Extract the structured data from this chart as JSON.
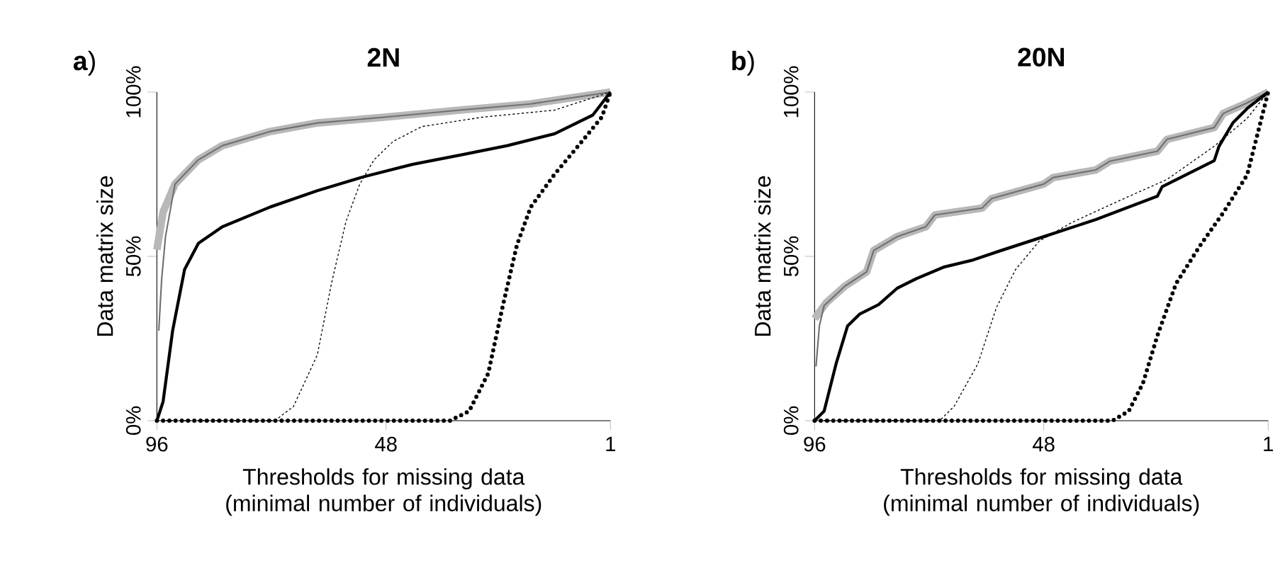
{
  "chart_data": [
    {
      "type": "line",
      "title": "2N",
      "annotations": [
        "**a**)"
      ],
      "xlabel": "Thresholds for missing data (minimal number of individuals)",
      "ylabel": "Data matrix size",
      "xlim": [
        96,
        1
      ],
      "xticks": [
        96,
        48,
        1
      ],
      "ylim": [
        0,
        100
      ],
      "yticks": [
        {
          "value": 0,
          "label": "0%"
        },
        {
          "value": 50,
          "label": "50%"
        },
        {
          "value": 100,
          "label": "100%"
        }
      ],
      "grid": false,
      "marker": "none",
      "series": [
        {
          "color": "#b8b8b8",
          "line_style": "solid",
          "x": [
            96,
            94.7,
            92.2,
            87.3,
            82.3,
            72.3,
            62.4,
            48,
            32.6,
            17.7,
            1
          ],
          "values": [
            52,
            63.5,
            72,
            79.4,
            83.7,
            88,
            90.6,
            92.4,
            94.5,
            96.4,
            100
          ]
        },
        {
          "color": "#707070",
          "line_style": "solid",
          "x": [
            95.6,
            95,
            94.2,
            92.2,
            87.3,
            82.3,
            72.3,
            62.4,
            48,
            32.6,
            17.7,
            1
          ],
          "values": [
            27.4,
            43,
            56,
            72,
            79.4,
            83.7,
            88,
            90.6,
            92.4,
            94.5,
            96.4,
            100
          ]
        },
        {
          "color": "#000000",
          "line_style": "solid",
          "x": [
            96,
            94.7,
            92.7,
            90.2,
            87.3,
            82.3,
            72.3,
            62.4,
            52.5,
            42.5,
            32.6,
            22.6,
            12.7,
            4.7,
            1
          ],
          "values": [
            0,
            5.8,
            27.4,
            46,
            54,
            59,
            65,
            70,
            74.3,
            78,
            80.8,
            83.7,
            87.3,
            93,
            100
          ]
        },
        {
          "color": "#000000",
          "line_style": "dotted",
          "x": [
            96,
            71.3,
            67.4,
            62.4,
            59.4,
            56.4,
            53.5,
            50.5,
            46.5,
            40.5,
            27.6,
            12.7,
            1
          ],
          "values": [
            0,
            0,
            4.3,
            20,
            42,
            60.6,
            72,
            79.4,
            85,
            89.5,
            92.4,
            94.5,
            100
          ]
        },
        {
          "color": "#000000",
          "line_style": "dotted",
          "x": [
            96,
            34.6,
            30.6,
            26.6,
            23.6,
            20.6,
            17.7,
            12.7,
            7.7,
            2.8,
            1
          ],
          "values": [
            0,
            0,
            2.9,
            14.4,
            34.6,
            53.4,
            65,
            75,
            83.7,
            92.4,
            100
          ]
        }
      ]
    },
    {
      "type": "line",
      "title": "20N",
      "annotations": [
        "**b**)"
      ],
      "xlabel": "Thresholds for missing data (minimal number of individuals)",
      "ylabel": "Data matrix size",
      "xlim": [
        96,
        1
      ],
      "xticks": [
        96,
        48,
        1
      ],
      "ylim": [
        0,
        100
      ],
      "yticks": [
        {
          "value": 0,
          "label": "0%"
        },
        {
          "value": 50,
          "label": "50%"
        },
        {
          "value": 100,
          "label": "100%"
        }
      ],
      "grid": false,
      "marker": "none",
      "series": [
        {
          "color": "#b8b8b8",
          "line_style": "solid",
          "x": [
            96,
            93.5,
            89.6,
            85.1,
            83.6,
            78.7,
            72.7,
            70.8,
            60.9,
            58.9,
            48,
            46,
            37.1,
            34.1,
            24.2,
            22.2,
            12.3,
            10.4,
            5.4,
            1
          ],
          "values": [
            31,
            36,
            41,
            45.3,
            51.8,
            56,
            59,
            62.6,
            64.7,
            67.6,
            72,
            74,
            76.3,
            79,
            82,
            85.6,
            89.2,
            93.5,
            96.7,
            100
          ]
        },
        {
          "color": "#707070",
          "line_style": "solid",
          "x": [
            95.7,
            95,
            94,
            89.6,
            85.1,
            83.6,
            78.7,
            72.7,
            70.8,
            60.9,
            58.9,
            48,
            46,
            37.1,
            34.1,
            24.2,
            22.2,
            12.3,
            10.4,
            5.4,
            1
          ],
          "values": [
            16.5,
            28.8,
            35,
            41,
            45.3,
            51.8,
            56,
            59,
            62.6,
            64.7,
            67.6,
            72,
            74,
            76.3,
            79,
            82,
            85.6,
            89.2,
            93.5,
            96.7,
            100
          ]
        },
        {
          "color": "#000000",
          "line_style": "solid",
          "x": [
            96,
            94,
            91.5,
            89.1,
            86.6,
            82.6,
            78.7,
            74.7,
            68.8,
            62.8,
            56.9,
            48,
            37.1,
            24.2,
            23.2,
            12.3,
            11.3,
            8.4,
            5.4,
            1
          ],
          "values": [
            0,
            2.9,
            17.3,
            28.8,
            32.4,
            35.3,
            40.3,
            43.2,
            46.8,
            48.9,
            51.8,
            56,
            61.2,
            68.3,
            71.2,
            79.1,
            83.5,
            90.6,
            95,
            100
          ]
        },
        {
          "color": "#000000",
          "line_style": "dotted",
          "x": [
            96,
            69.8,
            66.8,
            61.8,
            57.9,
            53.9,
            48.9,
            42,
            32.1,
            22.2,
            12.3,
            5.4,
            1
          ],
          "values": [
            0,
            0,
            4.3,
            17.3,
            34.5,
            46,
            54.7,
            60.4,
            67,
            73.4,
            83.5,
            92,
            100
          ]
        },
        {
          "color": "#000000",
          "line_style": "dotted",
          "x": [
            96,
            33.6,
            30.2,
            27.2,
            24.2,
            20.3,
            15.3,
            10.4,
            5.4,
            1
          ],
          "values": [
            0,
            0,
            2.9,
            11.5,
            25.9,
            41.7,
            53.2,
            63.3,
            74.8,
            100
          ]
        }
      ]
    }
  ]
}
